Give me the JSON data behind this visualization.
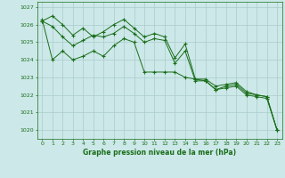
{
  "xlabel": "Graphe pression niveau de la mer (hPa)",
  "background_color": "#cce8e8",
  "grid_color": "#aacccc",
  "line_color": "#1a6e1a",
  "ylim": [
    1019.5,
    1027.3
  ],
  "xlim": [
    -0.5,
    23.5
  ],
  "yticks": [
    1020,
    1021,
    1022,
    1023,
    1024,
    1025,
    1026,
    1027
  ],
  "xticks": [
    0,
    1,
    2,
    3,
    4,
    5,
    6,
    7,
    8,
    9,
    10,
    11,
    12,
    13,
    14,
    15,
    16,
    17,
    18,
    19,
    20,
    21,
    22,
    23
  ],
  "series1": [
    1026.2,
    1026.5,
    1026.0,
    1025.4,
    1025.8,
    1025.3,
    1025.6,
    1026.0,
    1026.3,
    1025.8,
    1025.3,
    1025.5,
    1025.3,
    1024.1,
    1024.9,
    1022.9,
    1022.9,
    1022.5,
    1022.6,
    1022.7,
    1022.2,
    1022.0,
    1021.9,
    1020.0
  ],
  "series2": [
    1026.2,
    1025.9,
    1025.3,
    1024.8,
    1025.1,
    1025.4,
    1025.3,
    1025.5,
    1025.9,
    1025.5,
    1025.0,
    1025.2,
    1025.1,
    1023.8,
    1024.5,
    1022.8,
    1022.8,
    1022.3,
    1022.5,
    1022.6,
    1022.1,
    1022.0,
    1021.9,
    1020.0
  ],
  "series3": [
    1026.3,
    1024.0,
    1024.5,
    1024.0,
    1024.2,
    1024.5,
    1024.2,
    1024.8,
    1025.2,
    1025.0,
    1023.3,
    1023.3,
    1023.3,
    1023.3,
    1023.0,
    1022.9,
    1022.8,
    1022.3,
    1022.4,
    1022.5,
    1022.0,
    1021.9,
    1021.8,
    1020.0
  ]
}
